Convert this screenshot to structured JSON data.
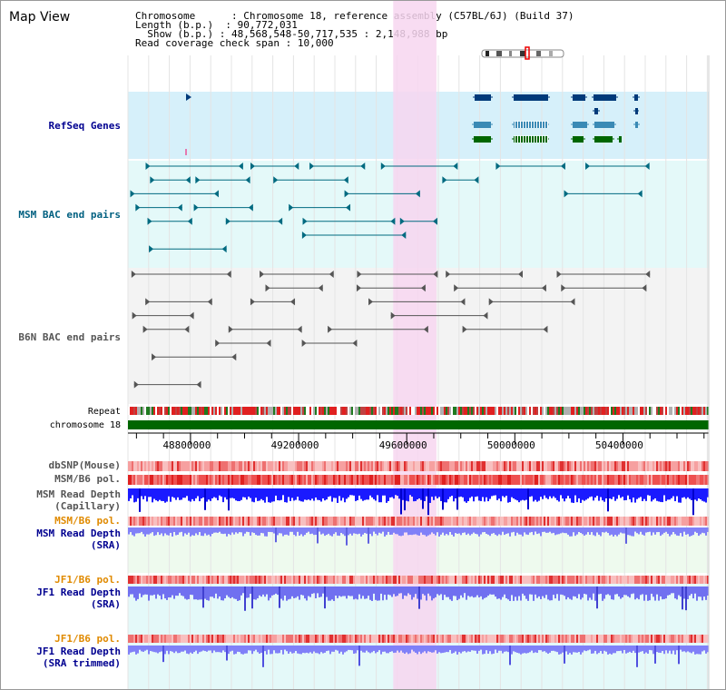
{
  "title": "Map View",
  "info": {
    "chromosome_key": "Chromosome      ",
    "chromosome_val": "Chromosome 18, reference assembly (C57BL/6J) (Build 37)",
    "length_key": "Length (b.p.)  ",
    "length_val": "90,772,031",
    "show_key": "  Show (b.p.) ",
    "show_val": "48,568,548-50,717,535 : 2,148,988 bp",
    "span_key": "Read coverage check span",
    "span_val": "10,000"
  },
  "labels": {
    "refseq": "RefSeq Genes",
    "msm_bac": "MSM BAC end pairs",
    "b6n_bac": "B6N BAC end pairs",
    "repeat": "Repeat",
    "chromosome": "chromosome 18",
    "dbsnp": "dbSNP(Mouse)",
    "msm_b6_pol": "MSM/B6 pol.",
    "msm_depth_cap_1": "MSM Read Depth",
    "msm_depth_cap_2": "(Capillary)",
    "msm_b6_pol_2": "MSM/B6 pol.",
    "msm_depth_sra_1": "MSM Read Depth",
    "msm_depth_sra_2": "(SRA)",
    "jf1_b6_pol": "JF1/B6 pol.",
    "jf1_depth_sra_1": "JF1 Read Depth",
    "jf1_depth_sra_2": "(SRA)",
    "jf1_b6_pol_2": "JF1/B6 pol.",
    "jf1_depth_trim_1": "JF1 Read Depth",
    "jf1_depth_trim_2": "(SRA trimmed)"
  },
  "axis": {
    "range_bp": [
      48568548,
      50717535
    ],
    "ticks": [
      "48800000",
      "49200000",
      "49600000",
      "50000000",
      "50400000"
    ],
    "tick_values": [
      48800000,
      49200000,
      49600000,
      50000000,
      50400000
    ]
  },
  "highlight_bp": [
    49550000,
    49710000
  ],
  "colors": {
    "refseq": "#003a7a",
    "msm": "#006a80",
    "b6n": "#555555",
    "chromosome": "#006600",
    "highlight": "#f7d6f0",
    "label_blue": "#000090",
    "label_teal": "#006080",
    "label_orange": "#e08a00",
    "depth_blue": "#1a1aff",
    "depth_light": "#7a7aff"
  }
}
